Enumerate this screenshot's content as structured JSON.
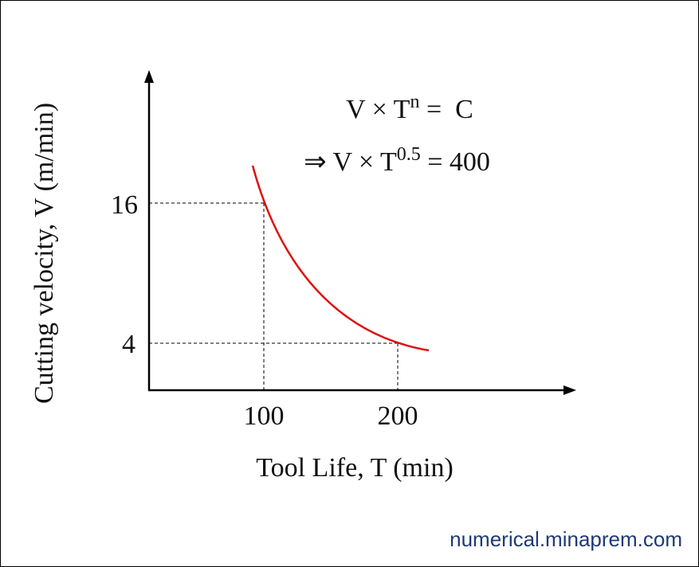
{
  "diagram": {
    "y_axis_label": "Cutting velocity, V (m/min)",
    "x_axis_label": "Tool Life, T (min)",
    "y_ticks": [
      "16",
      "4"
    ],
    "x_ticks": [
      "100",
      "200"
    ],
    "equation_1": {
      "base": "V × T",
      "exponent": "n",
      "rest": " =  C"
    },
    "equation_2": {
      "base": "⇒ V × T",
      "exponent": "0.5",
      "rest": " = 400"
    },
    "watermark": "numerical.minaprem.com"
  }
}
